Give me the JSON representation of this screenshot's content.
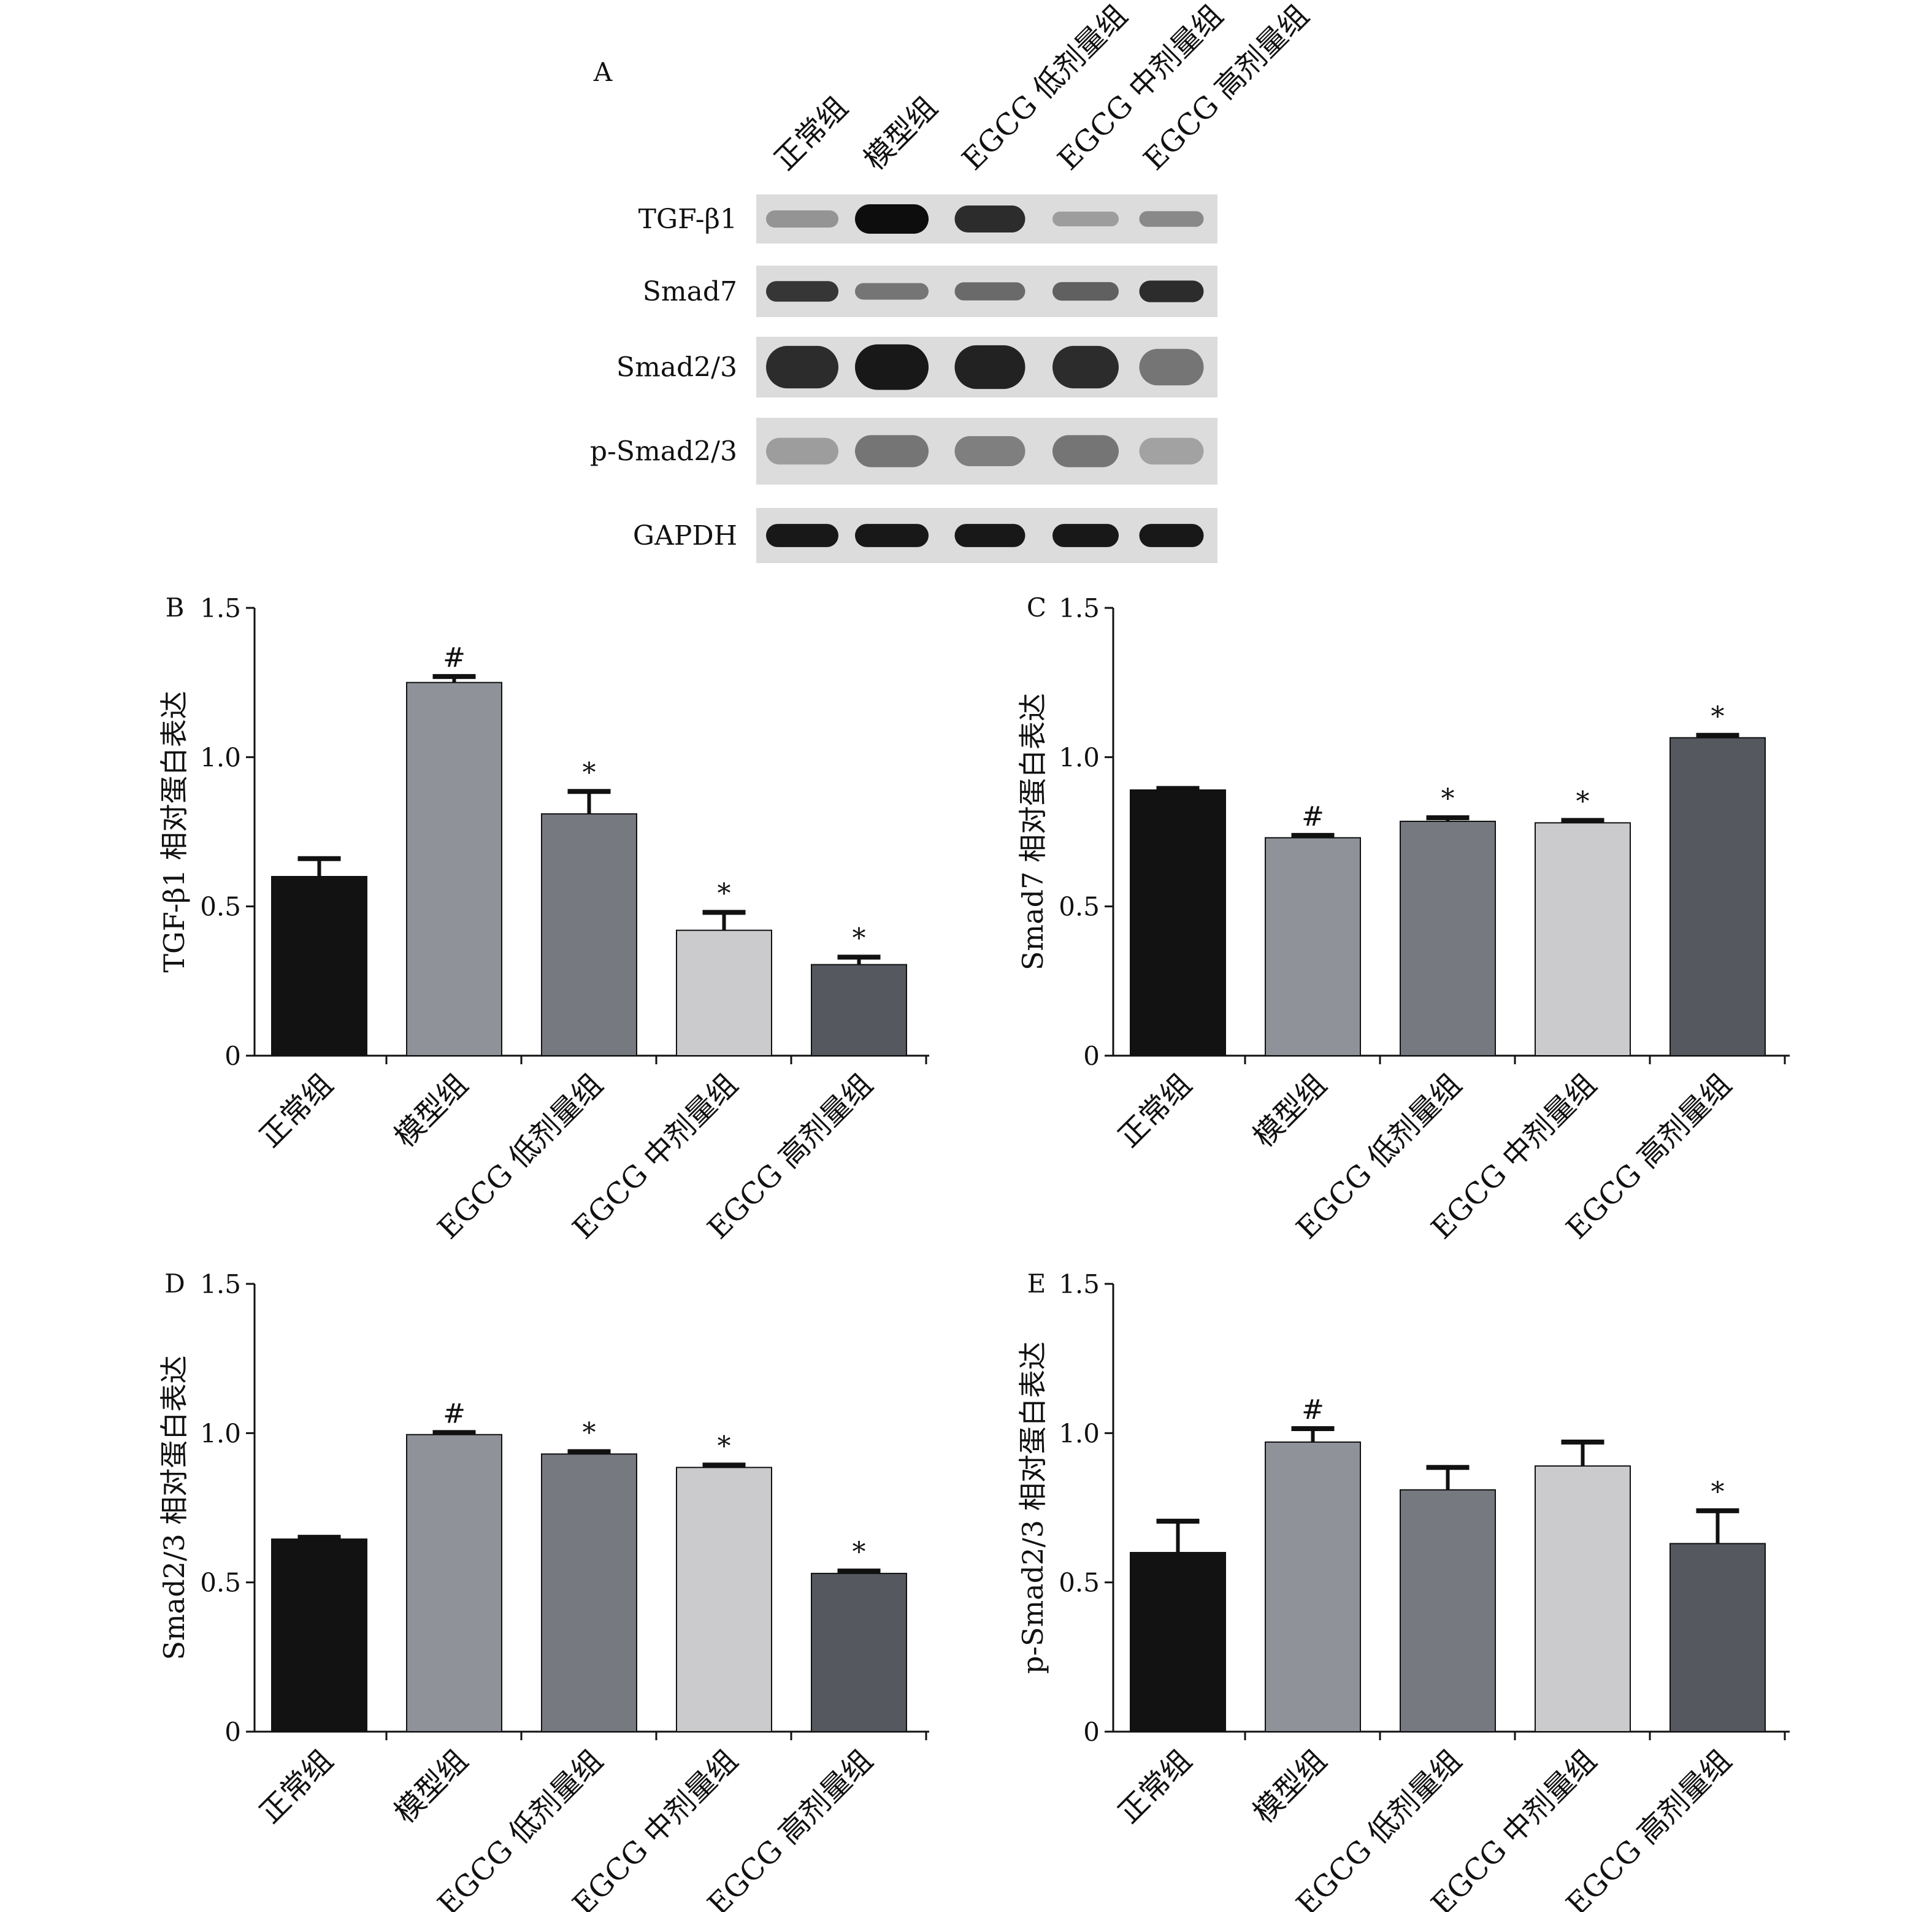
{
  "chart_data": [
    {
      "panel": "A",
      "type": "western-blot",
      "lanes": [
        "正常组",
        "模型组",
        "EGCG 低剂量组",
        "EGCG 中剂量组",
        "EGCG 高剂量组"
      ],
      "rows": [
        {
          "label": "TGF-β1",
          "strength": [
            0.35,
            1.0,
            0.85,
            0.3,
            0.4
          ],
          "thickness": [
            0.35,
            0.6,
            0.55,
            0.3,
            0.32
          ]
        },
        {
          "label": "Smad7",
          "strength": [
            0.8,
            0.5,
            0.55,
            0.6,
            0.85
          ],
          "thickness": [
            0.4,
            0.32,
            0.35,
            0.36,
            0.42
          ]
        },
        {
          "label": "Smad2/3",
          "strength": [
            0.85,
            0.95,
            0.9,
            0.85,
            0.5
          ],
          "thickness": [
            0.7,
            0.75,
            0.72,
            0.7,
            0.6
          ]
        },
        {
          "label": "p-Smad2/3",
          "strength": [
            0.3,
            0.5,
            0.45,
            0.5,
            0.28
          ],
          "thickness": [
            0.4,
            0.48,
            0.45,
            0.48,
            0.4
          ]
        },
        {
          "label": "GAPDH",
          "strength": [
            0.95,
            0.95,
            0.95,
            0.95,
            0.95
          ],
          "thickness": [
            0.42,
            0.42,
            0.42,
            0.42,
            0.42
          ]
        }
      ],
      "colors": {
        "background": "#dcdcdc",
        "band": "#0d0d0d"
      }
    },
    {
      "panel": "B",
      "type": "bar",
      "categories": [
        "正常组",
        "模型组",
        "EGCG 低剂量组",
        "EGCG 中剂量组",
        "EGCG 高剂量组"
      ],
      "values": [
        0.6,
        1.25,
        0.81,
        0.42,
        0.305
      ],
      "errors": [
        0.06,
        0.02,
        0.075,
        0.06,
        0.025
      ],
      "marks": [
        "",
        "#",
        "*",
        "*",
        "*"
      ],
      "ylabel": "TGF-β1 相对蛋白表达",
      "ylim": [
        0,
        1.5
      ],
      "yticks": [
        0,
        0.5,
        1.0,
        1.5
      ],
      "ytick_labels": [
        "0",
        "0.5",
        "1.0",
        "1.5"
      ]
    },
    {
      "panel": "C",
      "type": "bar",
      "categories": [
        "正常组",
        "模型组",
        "EGCG 低剂量组",
        "EGCG 中剂量组",
        "EGCG 高剂量组"
      ],
      "values": [
        0.89,
        0.73,
        0.785,
        0.78,
        1.065
      ],
      "errors": [
        0.005,
        0.008,
        0.012,
        0.008,
        0.008
      ],
      "marks": [
        "",
        "#",
        "*",
        "*",
        "*"
      ],
      "ylabel": "Smad7 相对蛋白表达",
      "ylim": [
        0,
        1.5
      ],
      "yticks": [
        0,
        0.5,
        1.0,
        1.5
      ],
      "ytick_labels": [
        "0",
        "0.5",
        "1.0",
        "1.5"
      ]
    },
    {
      "panel": "D",
      "type": "bar",
      "categories": [
        "正常组",
        "模型组",
        "EGCG 低剂量组",
        "EGCG 中剂量组",
        "EGCG 高剂量组"
      ],
      "values": [
        0.645,
        0.995,
        0.93,
        0.885,
        0.53
      ],
      "errors": [
        0.006,
        0.007,
        0.008,
        0.008,
        0.008
      ],
      "marks": [
        "",
        "#",
        "*",
        "*",
        "*"
      ],
      "ylabel": "Smad2/3 相对蛋白表达",
      "ylim": [
        0,
        1.5
      ],
      "yticks": [
        0,
        0.5,
        1.0,
        1.5
      ],
      "ytick_labels": [
        "0",
        "0.5",
        "1.0",
        "1.5"
      ]
    },
    {
      "panel": "E",
      "type": "bar",
      "categories": [
        "正常组",
        "模型组",
        "EGCG 低剂量组",
        "EGCG 中剂量组",
        "EGCG 高剂量组"
      ],
      "values": [
        0.6,
        0.97,
        0.81,
        0.89,
        0.63
      ],
      "errors": [
        0.105,
        0.045,
        0.075,
        0.08,
        0.11
      ],
      "marks": [
        "",
        "#",
        "",
        "",
        "*"
      ],
      "ylabel": "p-Smad2/3 相对蛋白表达",
      "ylim": [
        0,
        1.5
      ],
      "yticks": [
        0,
        0.5,
        1.0,
        1.5
      ],
      "ytick_labels": [
        "0",
        "0.5",
        "1.0",
        "1.5"
      ]
    }
  ],
  "colors": {
    "bars": [
      "#121212",
      "#8f9299",
      "#767980",
      "#cbcbcd",
      "#55585f"
    ],
    "axis": "#111111"
  }
}
